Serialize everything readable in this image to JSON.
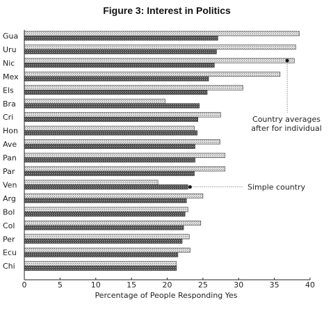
{
  "chart_data": {
    "type": "bar",
    "orientation": "horizontal",
    "title": "Figure 3: Interest in Politics",
    "xlabel": "Percentage of People Responding Yes",
    "ylabel": "",
    "xlim": [
      0,
      40
    ],
    "xticks": [
      0,
      5,
      10,
      15,
      20,
      25,
      30,
      35,
      40
    ],
    "grid": false,
    "categories": [
      "Gua",
      "Uru",
      "Nic",
      "Mex",
      "Els",
      "Bra",
      "Cri",
      "Hon",
      "Ave",
      "Pan",
      "Par",
      "Ven",
      "Arg",
      "Bol",
      "Col",
      "Per",
      "Ecu",
      "Chi"
    ],
    "series": [
      {
        "pattern": "light",
        "values": [
          38.5,
          38.0,
          37.8,
          35.8,
          30.6,
          19.7,
          27.5,
          23.8,
          27.4,
          28.1,
          28.1,
          18.7,
          25.0,
          22.9,
          24.7,
          23.1,
          23.2,
          21.3
        ]
      },
      {
        "pattern": "dark",
        "values": [
          27.1,
          26.9,
          26.6,
          25.8,
          25.6,
          24.5,
          24.3,
          24.2,
          23.9,
          23.9,
          23.8,
          22.9,
          22.7,
          22.5,
          22.3,
          22.1,
          21.5,
          21.3
        ]
      }
    ],
    "annotations": [
      {
        "text": [
          "Country averages",
          "after for individual"
        ],
        "x": 36.8,
        "y": "Nic",
        "series": "light"
      },
      {
        "text": [
          "Simple country"
        ],
        "x": 23.2,
        "y": "Ven",
        "series": "dark"
      }
    ]
  },
  "colors": {
    "light_bar": "#c4c4c4",
    "dark_bar": "#5e5e5e",
    "axis": "#222222"
  }
}
